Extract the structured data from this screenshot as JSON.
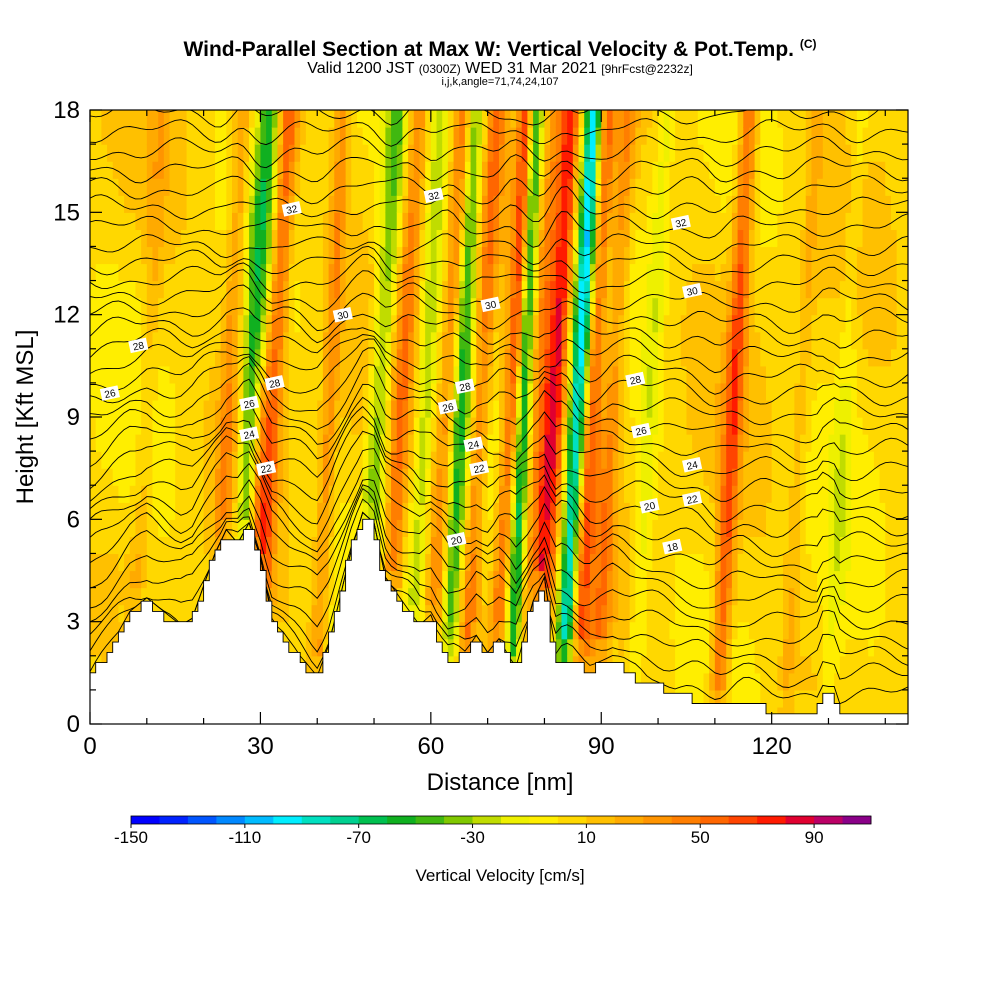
{
  "title": {
    "main": "Wind-Parallel Section at Max W: Vertical Velocity & Pot.Temp.",
    "copyright": "(C)",
    "valid_prefix": "Valid 1200 JST",
    "valid_utc": "(0300Z)",
    "valid_date": "WED 31 Mar 2021",
    "forecast": "[9hrFcst@2232z]",
    "params": "i,j,k,angle=71,74,24,107"
  },
  "chart_data": {
    "type": "heatmap",
    "xlabel": "Distance [nm]",
    "ylabel": "Height [Kft MSL]",
    "xlim": [
      0,
      144
    ],
    "ylim": [
      0,
      18
    ],
    "x_ticks": [
      "0",
      "30",
      "60",
      "90",
      "120"
    ],
    "y_ticks": [
      "0",
      "3",
      "6",
      "9",
      "12",
      "15",
      "18"
    ],
    "colorbar": {
      "label": "Vertical Velocity [cm/s]",
      "min": -150,
      "max": 110,
      "step": 10,
      "tick_labels": [
        "-150",
        "-110",
        "-70",
        "-30",
        "10",
        "50",
        "90"
      ],
      "colors": [
        "#0000ff",
        "#0022ff",
        "#0055ff",
        "#0088ff",
        "#00bbff",
        "#00eeff",
        "#00e0c0",
        "#00d090",
        "#00c050",
        "#10b020",
        "#40b810",
        "#80c800",
        "#c0dc00",
        "#eef000",
        "#ffee00",
        "#ffd800",
        "#ffc000",
        "#ffaa00",
        "#ff9400",
        "#ff7e00",
        "#ff6600",
        "#ff4400",
        "#ff1a00",
        "#e00030",
        "#bb0066",
        "#8a0088"
      ]
    },
    "terrain_kft": [
      [
        0,
        1.3
      ],
      [
        3,
        2
      ],
      [
        7,
        3.2
      ],
      [
        10,
        3.6
      ],
      [
        13,
        3.2
      ],
      [
        16,
        2.8
      ],
      [
        18,
        3
      ],
      [
        22,
        4.9
      ],
      [
        24,
        5.6
      ],
      [
        26,
        5.2
      ],
      [
        28,
        5.8
      ],
      [
        30,
        4.8
      ],
      [
        32,
        3
      ],
      [
        35,
        2.2
      ],
      [
        38,
        1.7
      ],
      [
        40,
        1.3
      ],
      [
        42,
        2.2
      ],
      [
        44,
        3.6
      ],
      [
        46,
        5
      ],
      [
        48,
        6.1
      ],
      [
        50,
        5.8
      ],
      [
        52,
        4.2
      ],
      [
        55,
        3.5
      ],
      [
        58,
        2.8
      ],
      [
        60,
        3.1
      ],
      [
        63,
        1.8
      ],
      [
        66,
        2
      ],
      [
        68,
        2.5
      ],
      [
        70,
        2
      ],
      [
        72,
        2.4
      ],
      [
        75,
        1.5
      ],
      [
        78,
        3.5
      ],
      [
        80,
        4.2
      ],
      [
        82,
        1.9
      ],
      [
        85,
        1.8
      ],
      [
        88,
        1.6
      ],
      [
        92,
        1.9
      ],
      [
        95,
        1.4
      ],
      [
        99,
        1.2
      ],
      [
        103,
        0.9
      ],
      [
        107,
        0.7
      ],
      [
        110,
        0.6
      ],
      [
        115,
        0.6
      ],
      [
        120,
        0.4
      ],
      [
        128,
        0.4
      ],
      [
        129,
        1
      ],
      [
        131,
        1
      ],
      [
        132,
        0.4
      ],
      [
        144,
        0.4
      ]
    ],
    "bands": [
      {
        "x": 27,
        "w": -55
      },
      {
        "x": 30,
        "w": 55
      },
      {
        "x": 23,
        "w": 30
      },
      {
        "x": 40,
        "w": 30
      },
      {
        "x": 49.5,
        "w": -45
      },
      {
        "x": 53,
        "w": 40
      },
      {
        "x": 57,
        "w": -30
      },
      {
        "x": 60.5,
        "w": 35
      },
      {
        "x": 63,
        "w": -55
      },
      {
        "x": 66.5,
        "w": 40
      },
      {
        "x": 72,
        "w": 60
      },
      {
        "x": 74,
        "w": -70
      },
      {
        "x": 77,
        "w": 30
      },
      {
        "x": 79.5,
        "w": 75
      },
      {
        "x": 83.5,
        "w": -100
      },
      {
        "x": 86,
        "w": 55
      },
      {
        "x": 89.5,
        "w": 35
      },
      {
        "x": 96,
        "w": -20
      },
      {
        "x": 110.5,
        "w": 55
      },
      {
        "x": 121,
        "w": -10
      },
      {
        "x": 122,
        "w": 20
      },
      {
        "x": 130,
        "w": -15
      },
      {
        "x": 8,
        "w": 15
      }
    ],
    "theta_contour_labels": [
      {
        "text": "32",
        "x": 35.5,
        "y": 15.1
      },
      {
        "text": "32",
        "x": 60.5,
        "y": 15.5
      },
      {
        "text": "32",
        "x": 104,
        "y": 14.7
      },
      {
        "text": "30",
        "x": 44.5,
        "y": 12.0
      },
      {
        "text": "30",
        "x": 70.5,
        "y": 12.3
      },
      {
        "text": "30",
        "x": 106,
        "y": 12.7
      },
      {
        "text": "28",
        "x": 8.5,
        "y": 11.1
      },
      {
        "text": "28",
        "x": 32.5,
        "y": 10.0
      },
      {
        "text": "28",
        "x": 66,
        "y": 9.9
      },
      {
        "text": "28",
        "x": 96,
        "y": 10.1
      },
      {
        "text": "26",
        "x": 3.5,
        "y": 9.7
      },
      {
        "text": "26",
        "x": 28,
        "y": 9.4
      },
      {
        "text": "26",
        "x": 63,
        "y": 9.3
      },
      {
        "text": "26",
        "x": 97,
        "y": 8.6
      },
      {
        "text": "24",
        "x": 28,
        "y": 8.5
      },
      {
        "text": "24",
        "x": 67.5,
        "y": 8.2
      },
      {
        "text": "24",
        "x": 106,
        "y": 7.6
      },
      {
        "text": "22",
        "x": 31,
        "y": 7.5
      },
      {
        "text": "22",
        "x": 68.5,
        "y": 7.5
      },
      {
        "text": "22",
        "x": 106,
        "y": 6.6
      },
      {
        "text": "20",
        "x": 64.5,
        "y": 5.4
      },
      {
        "text": "20",
        "x": 98.5,
        "y": 6.4
      },
      {
        "text": "18",
        "x": 102.5,
        "y": 5.2
      }
    ]
  }
}
